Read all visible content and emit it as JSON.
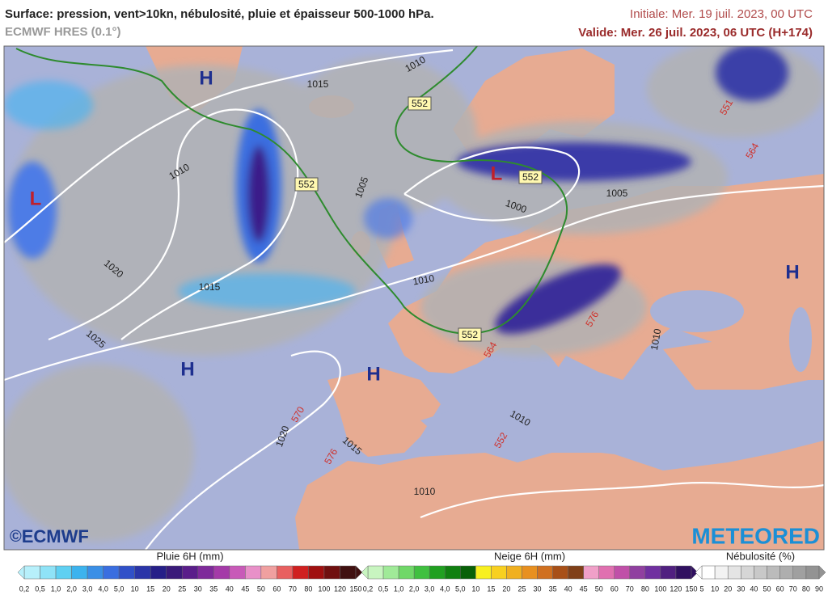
{
  "header": {
    "title": "Surface: pression, vent>10kn, nébulosité, pluie et épaisseur 500-1000 hPa.",
    "model": "ECMWF HRES (0.1°)",
    "init": "Initiale: Mer. 19 juil. 2023, 00 UTC",
    "valid": "Valide: Mer. 26 juil. 2023, 06 UTC (H+174)"
  },
  "map": {
    "pressure_centers": [
      "H",
      "H",
      "H",
      "H",
      "L",
      "L"
    ],
    "isobars": [
      "1015",
      "1010",
      "1010",
      "1005",
      "1000",
      "1005",
      "1020",
      "1015",
      "1010",
      "1025",
      "1020",
      "1015",
      "1010",
      "1010",
      "1010"
    ],
    "thickness_boxes": [
      "552",
      "552",
      "552",
      "552"
    ],
    "thickness_red": [
      "570",
      "576",
      "564",
      "551",
      "576",
      "564",
      "552"
    ]
  },
  "logos": {
    "left": "ECMWF",
    "right": "METEORED"
  },
  "legends": [
    {
      "title": "Pluie 6H (mm)",
      "ticks": [
        "0,2",
        "0,5",
        "1,0",
        "2,0",
        "3,0",
        "4,0",
        "5,0",
        "10",
        "15",
        "20",
        "25",
        "30",
        "35",
        "40",
        "45",
        "50",
        "60",
        "70",
        "80",
        "100",
        "120",
        "150"
      ]
    },
    {
      "title": "Neige 6H (mm)",
      "ticks": [
        "0,2",
        "0,5",
        "1,0",
        "2,0",
        "3,0",
        "4,0",
        "5,0",
        "10",
        "15",
        "20",
        "25",
        "30",
        "35",
        "40",
        "45",
        "50",
        "60",
        "70",
        "80",
        "100",
        "120",
        "150"
      ]
    },
    {
      "title": "Nébulosité (%)",
      "ticks": [
        "5",
        "10",
        "20",
        "30",
        "40",
        "50",
        "60",
        "70",
        "80",
        "90"
      ]
    }
  ]
}
